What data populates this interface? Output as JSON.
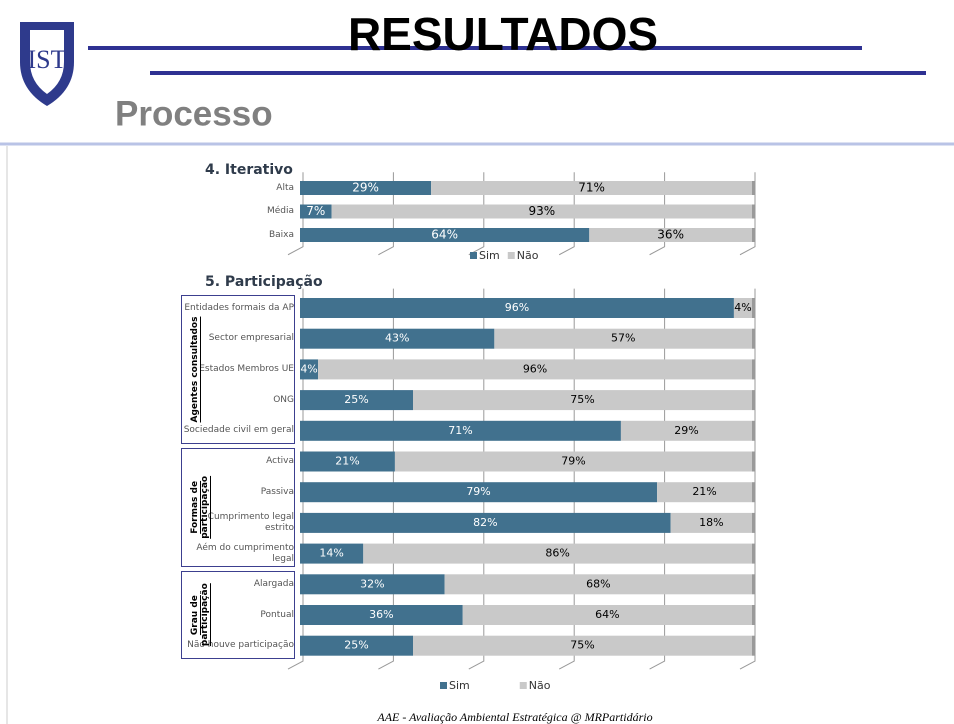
{
  "slide": {
    "title": "RESULTADOS",
    "subtitle": "Processo",
    "footer": "AAE - Avaliação Ambiental Estratégica    @    MRPartidário"
  },
  "chart_data": [
    {
      "type": "bar",
      "orientation": "horizontal",
      "stacked": true,
      "title": "4. Iterativo",
      "categories": [
        "Alta",
        "Média",
        "Baixa"
      ],
      "series": [
        {
          "name": "Sim",
          "color": "#41718e",
          "values": [
            29,
            7,
            64
          ],
          "value_labels": [
            "29%",
            "7%",
            "64%"
          ]
        },
        {
          "name": "Não",
          "color": "#c9c9c9",
          "values": [
            71,
            93,
            36
          ],
          "value_labels": [
            "71%",
            "93%",
            "36%"
          ]
        }
      ],
      "xlim": [
        0,
        100
      ],
      "xticks": [
        0,
        20,
        40,
        60,
        80,
        100
      ],
      "tick_labels": false,
      "grid": true,
      "legend": "bottom"
    },
    {
      "type": "bar",
      "orientation": "horizontal",
      "stacked": true,
      "title": "5. Participação",
      "categories": [
        "Entidades formais da AP",
        "Sector empresarial",
        "Estados Membros UE",
        "ONG",
        "Sociedade civil em geral",
        "Activa",
        "Passiva",
        "Cumprimento legal estrito",
        "Aém do cumprimento legal",
        "Alargada",
        "Pontual",
        "Não houve participação"
      ],
      "groups": [
        {
          "label": "Agentes consultados",
          "start": 0,
          "end": 4
        },
        {
          "label": "Formas de participação",
          "start": 5,
          "end": 8
        },
        {
          "label": "Grau de participação",
          "start": 9,
          "end": 11
        }
      ],
      "series": [
        {
          "name": "Sim",
          "color": "#41718e",
          "values": [
            96,
            43,
            4,
            25,
            71,
            21,
            79,
            82,
            14,
            32,
            36,
            25
          ],
          "value_labels": [
            "96%",
            "43%",
            "4%",
            "25%",
            "71%",
            "21%",
            "79%",
            "82%",
            "14%",
            "32%",
            "36%",
            "25%"
          ]
        },
        {
          "name": "Não",
          "color": "#c9c9c9",
          "values": [
            4,
            57,
            96,
            75,
            29,
            79,
            21,
            18,
            86,
            68,
            64,
            75
          ],
          "value_labels": [
            "4%",
            "57%",
            "96%",
            "75%",
            "29%",
            "79%",
            "21%",
            "18%",
            "86%",
            "68%",
            "64%",
            "75%"
          ]
        }
      ],
      "xlim": [
        0,
        100
      ],
      "xticks": [
        0,
        20,
        40,
        60,
        80,
        100
      ],
      "tick_labels": false,
      "grid": true,
      "legend": "bottom"
    }
  ]
}
